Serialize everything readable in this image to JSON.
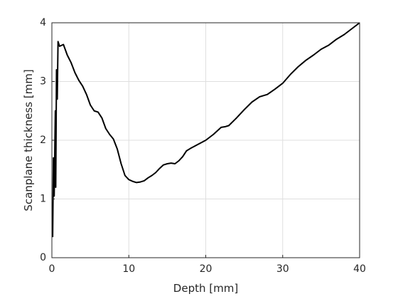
{
  "chart_data": {
    "type": "line",
    "x_label": "Depth [mm]",
    "y_label": "Scanplane thickness [mm]",
    "x": [
      0.1,
      0.2,
      0.3,
      0.45,
      0.5,
      0.6,
      0.7,
      0.8,
      1.0,
      1.5,
      2,
      2.5,
      3,
      3.5,
      4,
      4.5,
      5,
      5.5,
      6,
      6.5,
      7,
      7.5,
      8,
      8.5,
      9,
      9.5,
      10,
      10.5,
      11,
      11.5,
      12,
      12.5,
      13,
      13.5,
      14,
      14.5,
      15,
      15.5,
      16,
      16.5,
      17,
      17.5,
      18,
      19,
      20,
      21,
      22,
      22.5,
      23,
      24,
      25,
      26,
      27,
      28,
      29,
      30,
      31,
      32,
      33,
      34,
      35,
      36,
      37,
      38,
      39,
      40
    ],
    "series": [
      {
        "color": "#000000",
        "values": [
          0.35,
          1.7,
          1.05,
          2.5,
          1.2,
          3.2,
          2.7,
          3.68,
          3.6,
          3.63,
          3.45,
          3.32,
          3.15,
          3.02,
          2.92,
          2.78,
          2.6,
          2.5,
          2.48,
          2.38,
          2.2,
          2.1,
          2.02,
          1.85,
          1.6,
          1.4,
          1.33,
          1.3,
          1.28,
          1.29,
          1.31,
          1.36,
          1.4,
          1.45,
          1.52,
          1.58,
          1.6,
          1.61,
          1.6,
          1.65,
          1.72,
          1.82,
          1.86,
          1.93,
          2.0,
          2.1,
          2.22,
          2.23,
          2.25,
          2.38,
          2.52,
          2.65,
          2.74,
          2.78,
          2.87,
          2.97,
          3.12,
          3.25,
          3.36,
          3.45,
          3.55,
          3.62,
          3.72,
          3.8,
          3.9,
          4.0
        ]
      }
    ],
    "xlim": [
      0,
      40
    ],
    "xticks": [
      0,
      10,
      20,
      30,
      40
    ],
    "ylim": [
      0,
      4
    ],
    "yticks": [
      0,
      1,
      2,
      3,
      4
    ],
    "grid": true
  }
}
